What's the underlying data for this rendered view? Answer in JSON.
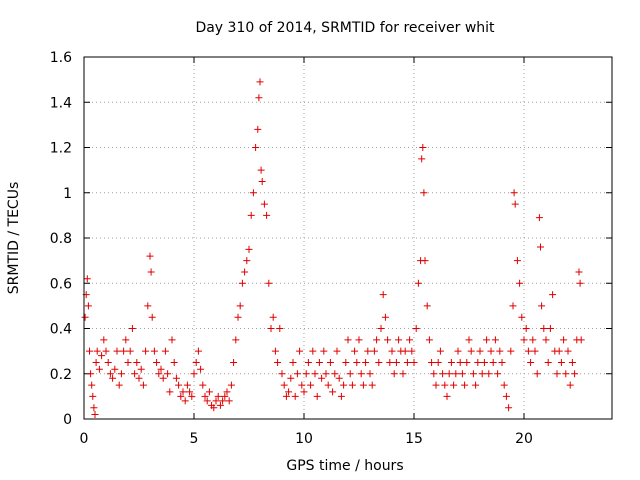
{
  "chart_data": {
    "type": "scatter",
    "title": "Day 310 of 2014, SRMTID for receiver whit",
    "xlabel": "GPS time / hours",
    "ylabel": "SRMTID / TECUs",
    "xlim": [
      0,
      24
    ],
    "ylim": [
      0,
      1.6
    ],
    "xticks": [
      0,
      5,
      10,
      15,
      20
    ],
    "xtick_labels": [
      "0",
      "5",
      "10",
      "15",
      "20"
    ],
    "yticks": [
      0,
      0.2,
      0.4,
      0.6,
      0.8,
      1.0,
      1.2,
      1.4,
      1.6
    ],
    "ytick_labels": [
      "0",
      "0.2",
      "0.4",
      "0.6",
      "0.8",
      "1",
      "1.2",
      "1.4",
      "1.6"
    ],
    "grid": true,
    "marker": "+",
    "marker_color": "#e00000",
    "series": [
      {
        "name": "SRMTID",
        "points": [
          [
            0.05,
            0.45
          ],
          [
            0.1,
            0.55
          ],
          [
            0.15,
            0.62
          ],
          [
            0.2,
            0.5
          ],
          [
            0.25,
            0.3
          ],
          [
            0.3,
            0.2
          ],
          [
            0.35,
            0.15
          ],
          [
            0.4,
            0.1
          ],
          [
            0.45,
            0.05
          ],
          [
            0.5,
            0.02
          ],
          [
            0.55,
            0.25
          ],
          [
            0.6,
            0.3
          ],
          [
            0.7,
            0.22
          ],
          [
            0.8,
            0.28
          ],
          [
            0.9,
            0.35
          ],
          [
            1.0,
            0.3
          ],
          [
            1.1,
            0.25
          ],
          [
            1.2,
            0.2
          ],
          [
            1.3,
            0.18
          ],
          [
            1.4,
            0.22
          ],
          [
            1.5,
            0.3
          ],
          [
            1.6,
            0.15
          ],
          [
            1.7,
            0.2
          ],
          [
            1.8,
            0.3
          ],
          [
            1.9,
            0.35
          ],
          [
            2.0,
            0.25
          ],
          [
            2.1,
            0.3
          ],
          [
            2.2,
            0.4
          ],
          [
            2.3,
            0.2
          ],
          [
            2.4,
            0.25
          ],
          [
            2.5,
            0.18
          ],
          [
            2.6,
            0.22
          ],
          [
            2.7,
            0.15
          ],
          [
            2.8,
            0.3
          ],
          [
            2.9,
            0.5
          ],
          [
            3.0,
            0.72
          ],
          [
            3.05,
            0.65
          ],
          [
            3.1,
            0.45
          ],
          [
            3.2,
            0.3
          ],
          [
            3.3,
            0.25
          ],
          [
            3.4,
            0.2
          ],
          [
            3.5,
            0.22
          ],
          [
            3.6,
            0.18
          ],
          [
            3.7,
            0.3
          ],
          [
            3.8,
            0.2
          ],
          [
            3.9,
            0.12
          ],
          [
            4.0,
            0.35
          ],
          [
            4.1,
            0.25
          ],
          [
            4.2,
            0.18
          ],
          [
            4.3,
            0.15
          ],
          [
            4.4,
            0.1
          ],
          [
            4.5,
            0.12
          ],
          [
            4.6,
            0.08
          ],
          [
            4.7,
            0.15
          ],
          [
            4.8,
            0.12
          ],
          [
            4.9,
            0.1
          ],
          [
            5.0,
            0.2
          ],
          [
            5.1,
            0.25
          ],
          [
            5.2,
            0.3
          ],
          [
            5.3,
            0.22
          ],
          [
            5.4,
            0.15
          ],
          [
            5.5,
            0.1
          ],
          [
            5.6,
            0.08
          ],
          [
            5.7,
            0.12
          ],
          [
            5.8,
            0.06
          ],
          [
            5.9,
            0.05
          ],
          [
            6.0,
            0.08
          ],
          [
            6.1,
            0.1
          ],
          [
            6.2,
            0.06
          ],
          [
            6.3,
            0.08
          ],
          [
            6.4,
            0.1
          ],
          [
            6.5,
            0.12
          ],
          [
            6.6,
            0.08
          ],
          [
            6.7,
            0.15
          ],
          [
            6.8,
            0.25
          ],
          [
            6.9,
            0.35
          ],
          [
            7.0,
            0.45
          ],
          [
            7.1,
            0.5
          ],
          [
            7.2,
            0.6
          ],
          [
            7.3,
            0.65
          ],
          [
            7.4,
            0.7
          ],
          [
            7.5,
            0.75
          ],
          [
            7.6,
            0.9
          ],
          [
            7.7,
            1.0
          ],
          [
            7.8,
            1.2
          ],
          [
            7.9,
            1.28
          ],
          [
            7.95,
            1.42
          ],
          [
            8.0,
            1.49
          ],
          [
            8.05,
            1.1
          ],
          [
            8.1,
            1.05
          ],
          [
            8.2,
            0.95
          ],
          [
            8.3,
            0.9
          ],
          [
            8.4,
            0.6
          ],
          [
            8.5,
            0.4
          ],
          [
            8.6,
            0.45
          ],
          [
            8.7,
            0.3
          ],
          [
            8.8,
            0.25
          ],
          [
            8.9,
            0.4
          ],
          [
            9.0,
            0.2
          ],
          [
            9.1,
            0.15
          ],
          [
            9.2,
            0.1
          ],
          [
            9.3,
            0.12
          ],
          [
            9.4,
            0.18
          ],
          [
            9.5,
            0.25
          ],
          [
            9.6,
            0.1
          ],
          [
            9.7,
            0.2
          ],
          [
            9.8,
            0.3
          ],
          [
            9.9,
            0.15
          ],
          [
            10.0,
            0.12
          ],
          [
            10.1,
            0.2
          ],
          [
            10.2,
            0.25
          ],
          [
            10.3,
            0.15
          ],
          [
            10.4,
            0.3
          ],
          [
            10.5,
            0.2
          ],
          [
            10.6,
            0.1
          ],
          [
            10.7,
            0.25
          ],
          [
            10.8,
            0.18
          ],
          [
            10.9,
            0.3
          ],
          [
            11.0,
            0.2
          ],
          [
            11.1,
            0.15
          ],
          [
            11.2,
            0.25
          ],
          [
            11.3,
            0.12
          ],
          [
            11.4,
            0.2
          ],
          [
            11.5,
            0.3
          ],
          [
            11.6,
            0.18
          ],
          [
            11.7,
            0.1
          ],
          [
            11.8,
            0.15
          ],
          [
            11.9,
            0.25
          ],
          [
            12.0,
            0.35
          ],
          [
            12.1,
            0.2
          ],
          [
            12.2,
            0.15
          ],
          [
            12.3,
            0.3
          ],
          [
            12.4,
            0.25
          ],
          [
            12.5,
            0.35
          ],
          [
            12.6,
            0.2
          ],
          [
            12.7,
            0.15
          ],
          [
            12.8,
            0.25
          ],
          [
            12.9,
            0.3
          ],
          [
            13.0,
            0.2
          ],
          [
            13.1,
            0.15
          ],
          [
            13.2,
            0.3
          ],
          [
            13.3,
            0.35
          ],
          [
            13.4,
            0.25
          ],
          [
            13.5,
            0.4
          ],
          [
            13.6,
            0.55
          ],
          [
            13.7,
            0.45
          ],
          [
            13.8,
            0.35
          ],
          [
            13.9,
            0.25
          ],
          [
            14.0,
            0.3
          ],
          [
            14.1,
            0.2
          ],
          [
            14.2,
            0.25
          ],
          [
            14.3,
            0.35
          ],
          [
            14.4,
            0.3
          ],
          [
            14.5,
            0.2
          ],
          [
            14.6,
            0.3
          ],
          [
            14.7,
            0.25
          ],
          [
            14.8,
            0.35
          ],
          [
            14.9,
            0.3
          ],
          [
            15.0,
            0.25
          ],
          [
            15.1,
            0.4
          ],
          [
            15.2,
            0.6
          ],
          [
            15.3,
            0.7
          ],
          [
            15.35,
            1.15
          ],
          [
            15.4,
            1.2
          ],
          [
            15.45,
            1.0
          ],
          [
            15.5,
            0.7
          ],
          [
            15.6,
            0.5
          ],
          [
            15.7,
            0.35
          ],
          [
            15.8,
            0.25
          ],
          [
            15.9,
            0.2
          ],
          [
            16.0,
            0.15
          ],
          [
            16.1,
            0.25
          ],
          [
            16.2,
            0.3
          ],
          [
            16.3,
            0.2
          ],
          [
            16.4,
            0.15
          ],
          [
            16.5,
            0.1
          ],
          [
            16.6,
            0.2
          ],
          [
            16.7,
            0.25
          ],
          [
            16.8,
            0.15
          ],
          [
            16.9,
            0.2
          ],
          [
            17.0,
            0.3
          ],
          [
            17.1,
            0.25
          ],
          [
            17.2,
            0.2
          ],
          [
            17.3,
            0.15
          ],
          [
            17.4,
            0.25
          ],
          [
            17.5,
            0.35
          ],
          [
            17.6,
            0.3
          ],
          [
            17.7,
            0.2
          ],
          [
            17.8,
            0.15
          ],
          [
            17.9,
            0.25
          ],
          [
            18.0,
            0.3
          ],
          [
            18.1,
            0.2
          ],
          [
            18.2,
            0.25
          ],
          [
            18.3,
            0.35
          ],
          [
            18.4,
            0.2
          ],
          [
            18.5,
            0.3
          ],
          [
            18.6,
            0.25
          ],
          [
            18.7,
            0.35
          ],
          [
            18.8,
            0.2
          ],
          [
            18.9,
            0.3
          ],
          [
            19.0,
            0.25
          ],
          [
            19.1,
            0.15
          ],
          [
            19.2,
            0.1
          ],
          [
            19.3,
            0.05
          ],
          [
            19.4,
            0.3
          ],
          [
            19.5,
            0.5
          ],
          [
            19.55,
            1.0
          ],
          [
            19.6,
            0.95
          ],
          [
            19.7,
            0.7
          ],
          [
            19.8,
            0.6
          ],
          [
            19.9,
            0.45
          ],
          [
            20.0,
            0.35
          ],
          [
            20.1,
            0.4
          ],
          [
            20.2,
            0.3
          ],
          [
            20.3,
            0.25
          ],
          [
            20.4,
            0.35
          ],
          [
            20.5,
            0.3
          ],
          [
            20.6,
            0.2
          ],
          [
            20.7,
            0.89
          ],
          [
            20.75,
            0.76
          ],
          [
            20.8,
            0.5
          ],
          [
            20.9,
            0.4
          ],
          [
            21.0,
            0.35
          ],
          [
            21.1,
            0.25
          ],
          [
            21.2,
            0.4
          ],
          [
            21.3,
            0.55
          ],
          [
            21.4,
            0.3
          ],
          [
            21.5,
            0.2
          ],
          [
            21.6,
            0.3
          ],
          [
            21.7,
            0.25
          ],
          [
            21.8,
            0.35
          ],
          [
            21.9,
            0.2
          ],
          [
            22.0,
            0.3
          ],
          [
            22.1,
            0.15
          ],
          [
            22.2,
            0.25
          ],
          [
            22.3,
            0.2
          ],
          [
            22.4,
            0.35
          ],
          [
            22.5,
            0.65
          ],
          [
            22.55,
            0.6
          ],
          [
            22.6,
            0.35
          ]
        ]
      }
    ]
  }
}
